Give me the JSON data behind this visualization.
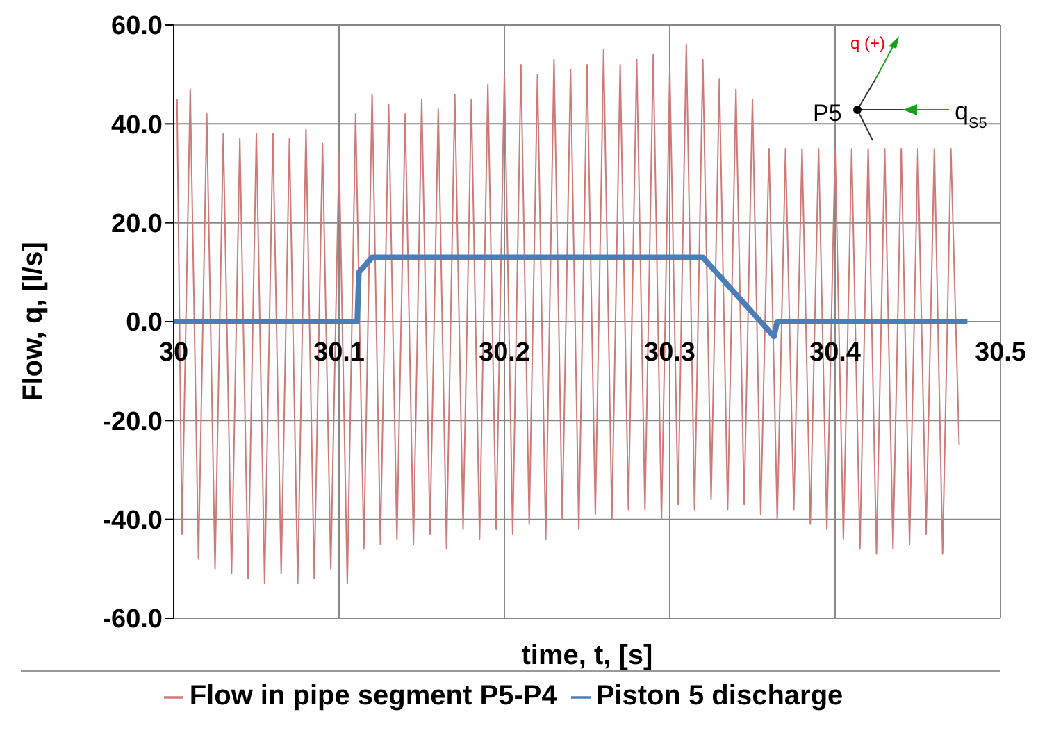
{
  "chart_data": {
    "type": "line",
    "xlabel": "time, t, [s]",
    "ylabel": "Flow, q, [l/s]",
    "xlim": [
      30,
      30.5
    ],
    "xticks": [
      30,
      30.1,
      30.2,
      30.3,
      30.4,
      30.5
    ],
    "ylim": [
      -60,
      60
    ],
    "yticks": [
      {
        "value": -60,
        "label": "-60.0"
      },
      {
        "value": -40,
        "label": "-40.0"
      },
      {
        "value": -20,
        "label": "-20.0"
      },
      {
        "value": 0,
        "label": "0.0"
      },
      {
        "value": 20,
        "label": "20.0"
      },
      {
        "value": 40,
        "label": "40.0"
      },
      {
        "value": 60,
        "label": "60.0"
      }
    ],
    "grid": true,
    "legend": "bottom",
    "marker": "none",
    "annotations": [
      "q (+)",
      "P5",
      "q$_{S5}$"
    ],
    "series": [
      {
        "name": "Flow in pipe segment P5-P4",
        "color": "#d07a78",
        "x": [
          30.002,
          30.005,
          30.01,
          30.015,
          30.02,
          30.025,
          30.03,
          30.035,
          30.04,
          30.045,
          30.05,
          30.055,
          30.06,
          30.065,
          30.07,
          30.075,
          30.08,
          30.085,
          30.09,
          30.095,
          30.1,
          30.105,
          30.11,
          30.115,
          30.12,
          30.125,
          30.13,
          30.135,
          30.14,
          30.145,
          30.15,
          30.155,
          30.16,
          30.165,
          30.17,
          30.175,
          30.18,
          30.185,
          30.19,
          30.195,
          30.2,
          30.205,
          30.21,
          30.215,
          30.22,
          30.225,
          30.23,
          30.235,
          30.24,
          30.245,
          30.25,
          30.255,
          30.26,
          30.265,
          30.27,
          30.275,
          30.28,
          30.285,
          30.29,
          30.295,
          30.3,
          30.305,
          30.31,
          30.315,
          30.32,
          30.325,
          30.33,
          30.335,
          30.34,
          30.345,
          30.35,
          30.355,
          30.36,
          30.365,
          30.37,
          30.375,
          30.38,
          30.385,
          30.39,
          30.395,
          30.4,
          30.405,
          30.41,
          30.415,
          30.42,
          30.425,
          30.43,
          30.435,
          30.44,
          30.445,
          30.45,
          30.455,
          30.46,
          30.465,
          30.47,
          30.475
        ],
        "values": [
          45,
          -43,
          47,
          -48,
          42,
          -50,
          38,
          -51,
          37,
          -52,
          38,
          -53,
          38,
          -51,
          37,
          -53,
          39,
          -52,
          36,
          -50,
          34,
          -53,
          42,
          -46,
          46,
          -45,
          44,
          -44,
          42,
          -45,
          45,
          -43,
          43,
          -46,
          46,
          -42,
          45,
          -44,
          48,
          -42,
          50,
          -43,
          52,
          -41,
          50,
          -44,
          53,
          -40,
          51,
          -42,
          52,
          -39,
          55,
          -40,
          52,
          -38,
          53,
          -38,
          54,
          -40,
          51,
          -37,
          56,
          -38,
          53,
          -36,
          49,
          -38,
          47,
          -37,
          45,
          -39,
          35,
          -40,
          35,
          -38,
          35,
          -41,
          35,
          -42,
          35,
          -44,
          35,
          -46,
          35,
          -47,
          35,
          -46,
          35,
          -45,
          35,
          -43,
          35,
          -47,
          35,
          -25
        ]
      },
      {
        "name": "Piston 5 discharge",
        "color": "#4a7ebb",
        "x": [
          30,
          30.111,
          30.112,
          30.12,
          30.32,
          30.363,
          30.365,
          30.48
        ],
        "values": [
          0,
          0,
          10,
          13,
          13,
          -3,
          0,
          0
        ]
      }
    ]
  }
}
